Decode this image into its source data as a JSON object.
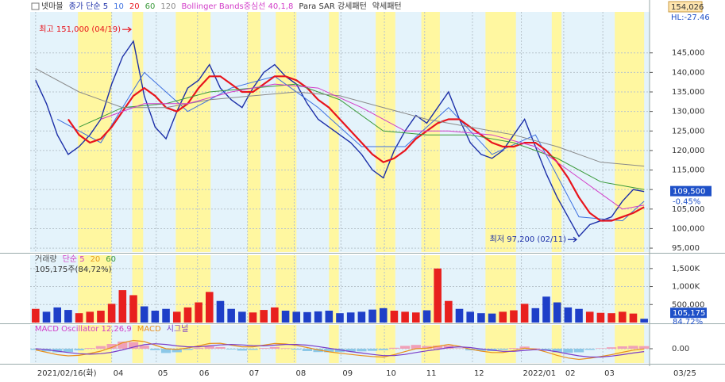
{
  "chart_data": [
    {
      "type": "line",
      "stock": "넷마블",
      "top_label": "154,026",
      "hl_label": "HL:-27.46",
      "x": [
        0,
        1,
        2,
        3,
        4,
        5,
        6,
        7,
        8,
        9,
        10,
        11,
        12,
        13,
        14,
        15,
        16,
        17,
        18,
        19,
        20,
        21,
        22,
        23,
        24,
        25,
        26,
        27,
        28,
        29,
        30,
        31,
        32,
        33,
        34,
        35,
        36,
        37,
        38,
        39,
        40,
        41,
        42,
        43,
        44,
        45,
        46,
        47,
        48,
        49,
        50,
        51,
        52,
        53,
        54,
        55,
        56
      ],
      "xlim": [
        -0.5,
        56.5
      ],
      "ylim": [
        94000,
        155500
      ],
      "yticks": [
        {
          "value": 95000,
          "label": "95,000"
        },
        {
          "value": 100000,
          "label": "100,000"
        },
        {
          "value": 105000,
          "label": "105,000"
        },
        {
          "value": 110000,
          "label": "110,000"
        },
        {
          "value": 115000,
          "label": "115,000"
        },
        {
          "value": 120000,
          "label": "120,000"
        },
        {
          "value": 125000,
          "label": "125,000"
        },
        {
          "value": 130000,
          "label": "130,000"
        },
        {
          "value": 135000,
          "label": "135,000"
        },
        {
          "value": 140000,
          "label": "140,000"
        },
        {
          "value": 145000,
          "label": "145,000"
        }
      ],
      "grid": true,
      "bands": [
        [
          3.9,
          7.0
        ],
        [
          8.9,
          9.9
        ],
        [
          12.9,
          16.1
        ],
        [
          19.5,
          20.7
        ],
        [
          22.1,
          24.0
        ],
        [
          27.0,
          27.9
        ],
        [
          31.3,
          33.1
        ],
        [
          35.5,
          37.2
        ],
        [
          41.4,
          44.2
        ],
        [
          47.5,
          48.4
        ],
        [
          53.3,
          56.0
        ]
      ],
      "band_color": "#fff7a0",
      "background": "#e4f3fb",
      "series": [
        {
          "name": "종가 단순 5",
          "color": "#1c2fa8",
          "line_width": 1.4,
          "values": [
            138000,
            132000,
            124000,
            119000,
            121000,
            124000,
            128000,
            137000,
            144000,
            148000,
            134000,
            126000,
            123000,
            130000,
            136000,
            138000,
            142000,
            136000,
            133000,
            131000,
            136000,
            140000,
            142000,
            139000,
            137000,
            132000,
            128000,
            126000,
            124000,
            122000,
            119000,
            115000,
            113000,
            120000,
            125000,
            129000,
            127000,
            131000,
            135000,
            128000,
            122000,
            119000,
            118000,
            120000,
            124000,
            128000,
            121000,
            114000,
            108000,
            103000,
            98000,
            101000,
            102000,
            103000,
            107000,
            110000,
            109500
          ]
        },
        {
          "name": "10",
          "color": "#3c6fe0",
          "line_width": 1,
          "x": [
            2,
            6,
            10,
            14,
            18,
            22,
            26,
            30,
            34,
            38,
            42,
            46,
            50,
            54,
            56
          ],
          "values": [
            128000,
            122000,
            140000,
            130000,
            136000,
            139000,
            131000,
            121000,
            121000,
            131000,
            119000,
            124000,
            103000,
            102000,
            107000
          ]
        },
        {
          "name": "20",
          "color": "#e8141c",
          "line_width": 2.2,
          "values": [
            null,
            null,
            null,
            128000,
            124000,
            122000,
            123000,
            126000,
            130000,
            134000,
            136000,
            134000,
            131000,
            130000,
            132000,
            136000,
            139000,
            139000,
            137000,
            135000,
            135000,
            137000,
            139000,
            139000,
            138000,
            136000,
            133000,
            131000,
            128000,
            125000,
            122000,
            119000,
            117000,
            118000,
            120000,
            123000,
            125000,
            127000,
            128000,
            128000,
            126000,
            124000,
            122000,
            121000,
            121000,
            122000,
            122000,
            120000,
            117000,
            113000,
            108000,
            104000,
            102000,
            102000,
            103000,
            104000,
            105500
          ]
        },
        {
          "name": "60",
          "color": "#3a9a3a",
          "line_width": 1,
          "x": [
            4,
            8,
            12,
            16,
            20,
            24,
            28,
            32,
            36,
            40,
            44,
            48,
            52,
            56
          ],
          "values": [
            126000,
            131000,
            132000,
            135000,
            136000,
            137000,
            133000,
            125000,
            124000,
            124000,
            122000,
            118000,
            112000,
            110000
          ]
        },
        {
          "name": "120",
          "color": "#8a8a8a",
          "line_width": 1,
          "x": [
            0,
            4,
            8,
            12,
            16,
            20,
            24,
            28,
            32,
            36,
            40,
            44,
            48,
            52,
            56
          ],
          "values": [
            141000,
            135000,
            131000,
            131000,
            133000,
            134000,
            135000,
            134000,
            131000,
            128000,
            126000,
            124000,
            121000,
            117000,
            116000
          ]
        },
        {
          "name": "Bollinger Bands중심선 40,1,8",
          "color": "#d23cc8",
          "line_width": 1,
          "x": [
            6,
            10,
            14,
            18,
            22,
            26,
            30,
            34,
            38,
            42,
            46,
            50,
            54,
            56
          ],
          "values": [
            128000,
            132000,
            132000,
            135000,
            137000,
            136000,
            131000,
            125000,
            125000,
            124000,
            121000,
            113000,
            105000,
            106000
          ]
        }
      ],
      "legend_extra": [
        {
          "text": "Para SAR 강세패턴",
          "color": "#333333"
        },
        {
          "text": "약세패턴",
          "color": "#333333"
        }
      ],
      "annotations": [
        {
          "text": "최고 151,000 (04/19)",
          "x": 9,
          "y": 151000,
          "color": "#e8141c"
        },
        {
          "text": "최저 97,200 (02/11)",
          "x": 50,
          "y": 97200,
          "color": "#1c2fa8"
        }
      ],
      "last_label": {
        "value": 109500,
        "label": "109,500",
        "change": "-0.45%",
        "color": "#1e50c8"
      }
    },
    {
      "type": "bar",
      "title": "거래량",
      "info": "105,175주(84,72%)",
      "legend": [
        {
          "text": "단순 5",
          "color": "#d23cc8"
        },
        {
          "text": "20",
          "color": "#e89a1c"
        },
        {
          "text": "60",
          "color": "#3a9a3a"
        }
      ],
      "up_color": "#e8201e",
      "down_color": "#1e3fc8",
      "ylim": [
        0,
        1870000
      ],
      "yticks": [
        {
          "value": 500000,
          "label": "500,000"
        },
        {
          "value": 1000000,
          "label": "1,000K"
        },
        {
          "value": 1500000,
          "label": "1,500K"
        }
      ],
      "values": [
        380000,
        300000,
        420000,
        350000,
        260000,
        300000,
        330000,
        520000,
        900000,
        760000,
        450000,
        330000,
        380000,
        300000,
        420000,
        560000,
        850000,
        600000,
        380000,
        300000,
        280000,
        350000,
        420000,
        330000,
        300000,
        290000,
        310000,
        330000,
        260000,
        280000,
        300000,
        360000,
        400000,
        330000,
        300000,
        280000,
        340000,
        1500000,
        600000,
        380000,
        300000,
        260000,
        250000,
        300000,
        340000,
        520000,
        400000,
        720000,
        560000,
        420000,
        380000,
        300000,
        270000,
        260000,
        300000,
        250000,
        105175
      ],
      "last_label": {
        "value": 105175,
        "label": "105,175",
        "ratio": "84.72%",
        "color": "#1e50c8"
      }
    },
    {
      "type": "macd",
      "ylim": [
        -6000,
        10000
      ],
      "yticks": [
        {
          "value": 0,
          "label": "0.00"
        }
      ],
      "osc_up_color": "#f0a0b8",
      "osc_down_color": "#8cc8e8",
      "series": [
        {
          "name": "MACD Oscillator 12,26,9",
          "color": "#d23cc8",
          "values": [
            -500,
            -1100,
            -1500,
            -1400,
            -700,
            300,
            1100,
            2000,
            3000,
            2800,
            1300,
            -600,
            -1800,
            -1500,
            -500,
            400,
            1000,
            700,
            -300,
            -800,
            -500,
            300,
            700,
            200,
            -400,
            -1000,
            -1400,
            -1500,
            -1400,
            -1200,
            -1100,
            -900,
            -600,
            400,
            1200,
            1600,
            1100,
            1300,
            1300,
            200,
            -700,
            -900,
            -1000,
            -500,
            300,
            900,
            200,
            -800,
            -1500,
            -1700,
            -1500,
            -500,
            200,
            600,
            1000,
            1200,
            1100
          ]
        },
        {
          "name": "MACD",
          "color": "#e8901c",
          "values": [
            -500,
            -1500,
            -2500,
            -3000,
            -2800,
            -2000,
            -1000,
            500,
            2500,
            3500,
            3000,
            1500,
            0,
            -300,
            300,
            1200,
            2200,
            2300,
            1500,
            800,
            800,
            1500,
            2200,
            2000,
            1400,
            500,
            -500,
            -1300,
            -1900,
            -2400,
            -2900,
            -3300,
            -3500,
            -2500,
            -1200,
            0,
            200,
            1000,
            1800,
            1000,
            -200,
            -1000,
            -1600,
            -1600,
            -800,
            200,
            -200,
            -1400,
            -2800,
            -3900,
            -4500,
            -4000,
            -3300,
            -2500,
            -1500,
            -600,
            -100
          ]
        },
        {
          "name": "시그널",
          "color": "#7a3cc8",
          "values": [
            0,
            -400,
            -1000,
            -1600,
            -2100,
            -2300,
            -2100,
            -1500,
            -500,
            700,
            1700,
            2100,
            1800,
            1200,
            800,
            800,
            1200,
            1600,
            1800,
            1600,
            1300,
            1200,
            1500,
            1800,
            1800,
            1500,
            900,
            200,
            -500,
            -1200,
            -1800,
            -2400,
            -2900,
            -2900,
            -2400,
            -1600,
            -900,
            -300,
            500,
            800,
            500,
            -100,
            -600,
            -1100,
            -1100,
            -700,
            -400,
            -600,
            -1300,
            -2200,
            -3000,
            -3500,
            -3500,
            -3100,
            -2500,
            -1800,
            -1200
          ]
        }
      ],
      "xticks": [
        {
          "value": 0,
          "label": "2021/02/16(화)"
        },
        {
          "value": 7.0,
          "label": "04"
        },
        {
          "value": 11.1,
          "label": "05"
        },
        {
          "value": 14.9,
          "label": "06"
        },
        {
          "value": 19.5,
          "label": "07"
        },
        {
          "value": 23.8,
          "label": "08"
        },
        {
          "value": 28.1,
          "label": "09"
        },
        {
          "value": 32.1,
          "label": "10"
        },
        {
          "value": 35.8,
          "label": "11"
        },
        {
          "value": 40.2,
          "label": "12"
        },
        {
          "value": 44.7,
          "label": "2022/01"
        },
        {
          "value": 48.6,
          "label": "02"
        },
        {
          "value": 52.2,
          "label": "03"
        }
      ],
      "end_label": "03/25"
    }
  ]
}
